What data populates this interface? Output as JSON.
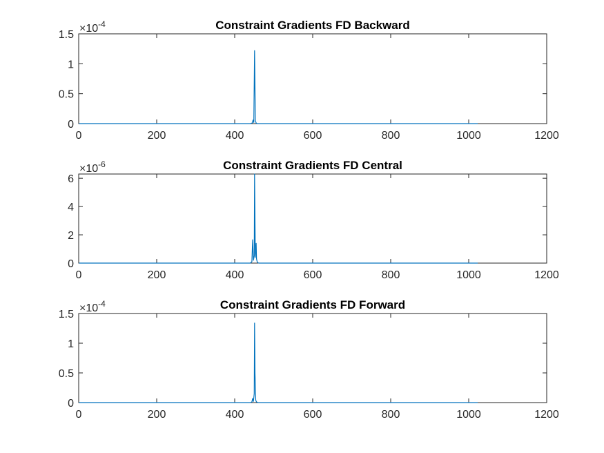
{
  "chart_data": [
    {
      "type": "line",
      "title": "Constraint Gradients FD Backward",
      "xlabel": "",
      "ylabel": "",
      "xlim": [
        0,
        1200
      ],
      "ylim": [
        0,
        1.5
      ],
      "x_ticks": [
        "0",
        "200",
        "400",
        "600",
        "800",
        "1000",
        "1200"
      ],
      "y_ticks": [
        "0",
        "0.5",
        "1",
        "1.5"
      ],
      "y_exponent": "-4",
      "grid": false,
      "color": "#0072bd",
      "series": [
        {
          "x": [
            1,
            440,
            445,
            447,
            449,
            451,
            452,
            453,
            455,
            457,
            460,
            1023
          ],
          "y": [
            0,
            0,
            0.01,
            0.06,
            0.02,
            1.22,
            0.6,
            0.05,
            0.01,
            0,
            0,
            0
          ]
        }
      ]
    },
    {
      "type": "line",
      "title": "Constraint Gradients FD Central",
      "xlabel": "",
      "ylabel": "",
      "xlim": [
        0,
        1200
      ],
      "ylim": [
        0,
        6.3
      ],
      "x_ticks": [
        "0",
        "200",
        "400",
        "600",
        "800",
        "1000",
        "1200"
      ],
      "y_ticks": [
        "0",
        "2",
        "4",
        "6"
      ],
      "y_exponent": "-6",
      "grid": false,
      "color": "#0072bd",
      "series": [
        {
          "x": [
            1,
            440,
            444,
            446,
            448,
            450,
            451,
            452,
            453,
            455,
            456,
            458,
            462,
            1023
          ],
          "y": [
            0,
            0,
            0.1,
            1.65,
            0.2,
            0.5,
            6.3,
            3.0,
            0.4,
            1.4,
            0.3,
            0.05,
            0,
            0
          ]
        }
      ]
    },
    {
      "type": "line",
      "title": "Constraint Gradients FD Forward",
      "xlabel": "",
      "ylabel": "",
      "xlim": [
        0,
        1200
      ],
      "ylim": [
        0,
        1.5
      ],
      "x_ticks": [
        "0",
        "200",
        "400",
        "600",
        "800",
        "1000",
        "1200"
      ],
      "y_ticks": [
        "0",
        "0.5",
        "1",
        "1.5"
      ],
      "y_exponent": "-4",
      "grid": false,
      "color": "#0072bd",
      "series": [
        {
          "x": [
            1,
            440,
            444,
            446,
            448,
            450,
            451,
            452,
            454,
            456,
            460,
            1023
          ],
          "y": [
            0,
            0,
            0.01,
            0.07,
            0.02,
            0.15,
            1.34,
            0.5,
            0.04,
            0.01,
            0,
            0
          ]
        }
      ]
    }
  ]
}
